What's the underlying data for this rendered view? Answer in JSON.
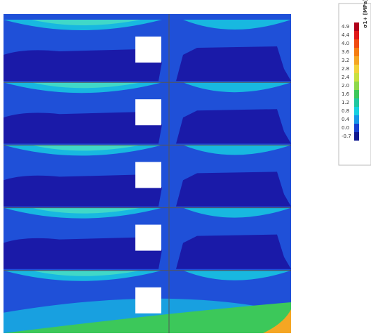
{
  "colorbar": {
    "title": "σ1+ [MPa]",
    "ticks": [
      4.9,
      4.4,
      {
        "value": 4.0,
        "label": "4.0"
      },
      3.6,
      3.2,
      2.8,
      2.4,
      {
        "value": 2.0,
        "label": "2.0"
      },
      1.6,
      1.2,
      0.8,
      0.4,
      {
        "value": 0.0,
        "label": "0.0"
      },
      -0.7
    ],
    "colors": [
      "#b0001a",
      "#e01818",
      "#f04a10",
      "#f57c10",
      "#f5a623",
      "#f2d23a",
      "#c8e040",
      "#8ed84a",
      "#3cc85a",
      "#20c8a0",
      "#18d0e0",
      "#1898e8",
      "#1840d0",
      "#101890"
    ]
  }
}
